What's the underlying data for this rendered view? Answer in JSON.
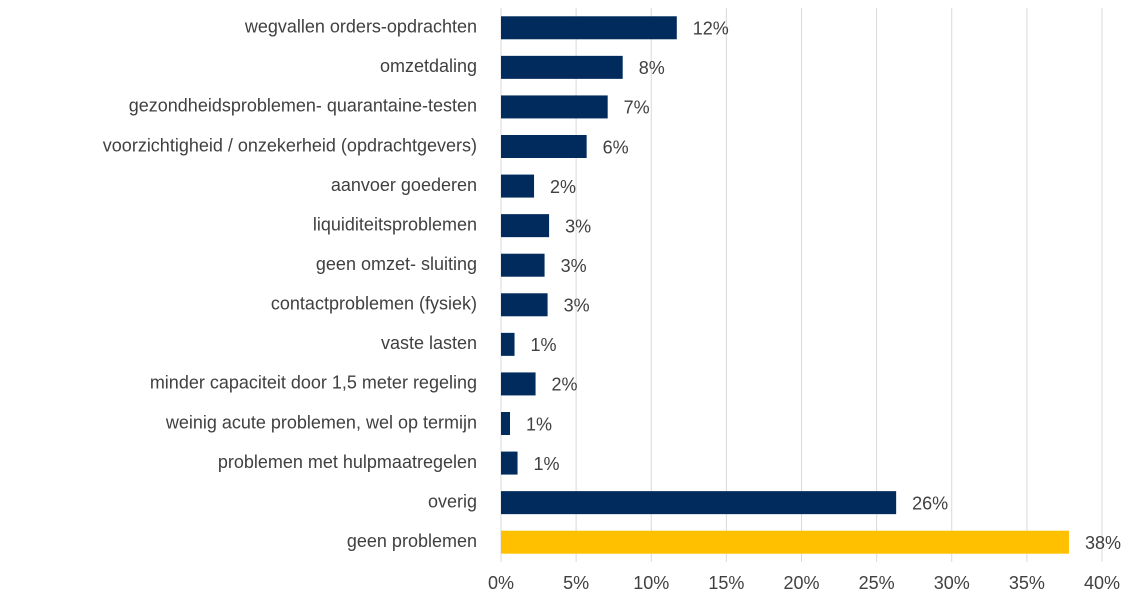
{
  "chart_data": {
    "type": "hbar",
    "categories": [
      "wegvallen orders-opdrachten",
      "omzetdaling",
      "gezondheidsproblemen- quarantaine-testen",
      "voorzichtigheid / onzekerheid (opdrachtgevers)",
      "aanvoer goederen",
      "liquiditeitsproblemen",
      "geen omzet- sluiting",
      "contactproblemen (fysiek)",
      "vaste lasten",
      "minder capaciteit door 1,5 meter regeling",
      "weinig acute problemen, wel op termijn",
      "problemen met hulpmaatregelen",
      "overig",
      "geen problemen"
    ],
    "values": [
      11.7,
      8.1,
      7.1,
      5.7,
      2.2,
      3.2,
      2.9,
      3.1,
      0.9,
      2.3,
      0.6,
      1.1,
      26.3,
      37.8
    ],
    "value_labels": [
      "12%",
      "8%",
      "7%",
      "6%",
      "2%",
      "3%",
      "3%",
      "3%",
      "1%",
      "2%",
      "1%",
      "1%",
      "26%",
      "38%"
    ],
    "colors": [
      "#002b5c",
      "#002b5c",
      "#002b5c",
      "#002b5c",
      "#002b5c",
      "#002b5c",
      "#002b5c",
      "#002b5c",
      "#002b5c",
      "#002b5c",
      "#002b5c",
      "#002b5c",
      "#002b5c",
      "#ffc000"
    ],
    "xlim": [
      0,
      40
    ],
    "xticks": [
      {
        "value": 0,
        "label": "0%"
      },
      {
        "value": 5,
        "label": "5%"
      },
      {
        "value": 10,
        "label": "10%"
      },
      {
        "value": 15,
        "label": "15%"
      },
      {
        "value": 20,
        "label": "20%"
      },
      {
        "value": 25,
        "label": "25%"
      },
      {
        "value": 30,
        "label": "30%"
      },
      {
        "value": 35,
        "label": "35%"
      },
      {
        "value": 40,
        "label": "40%"
      }
    ],
    "grid": true
  }
}
